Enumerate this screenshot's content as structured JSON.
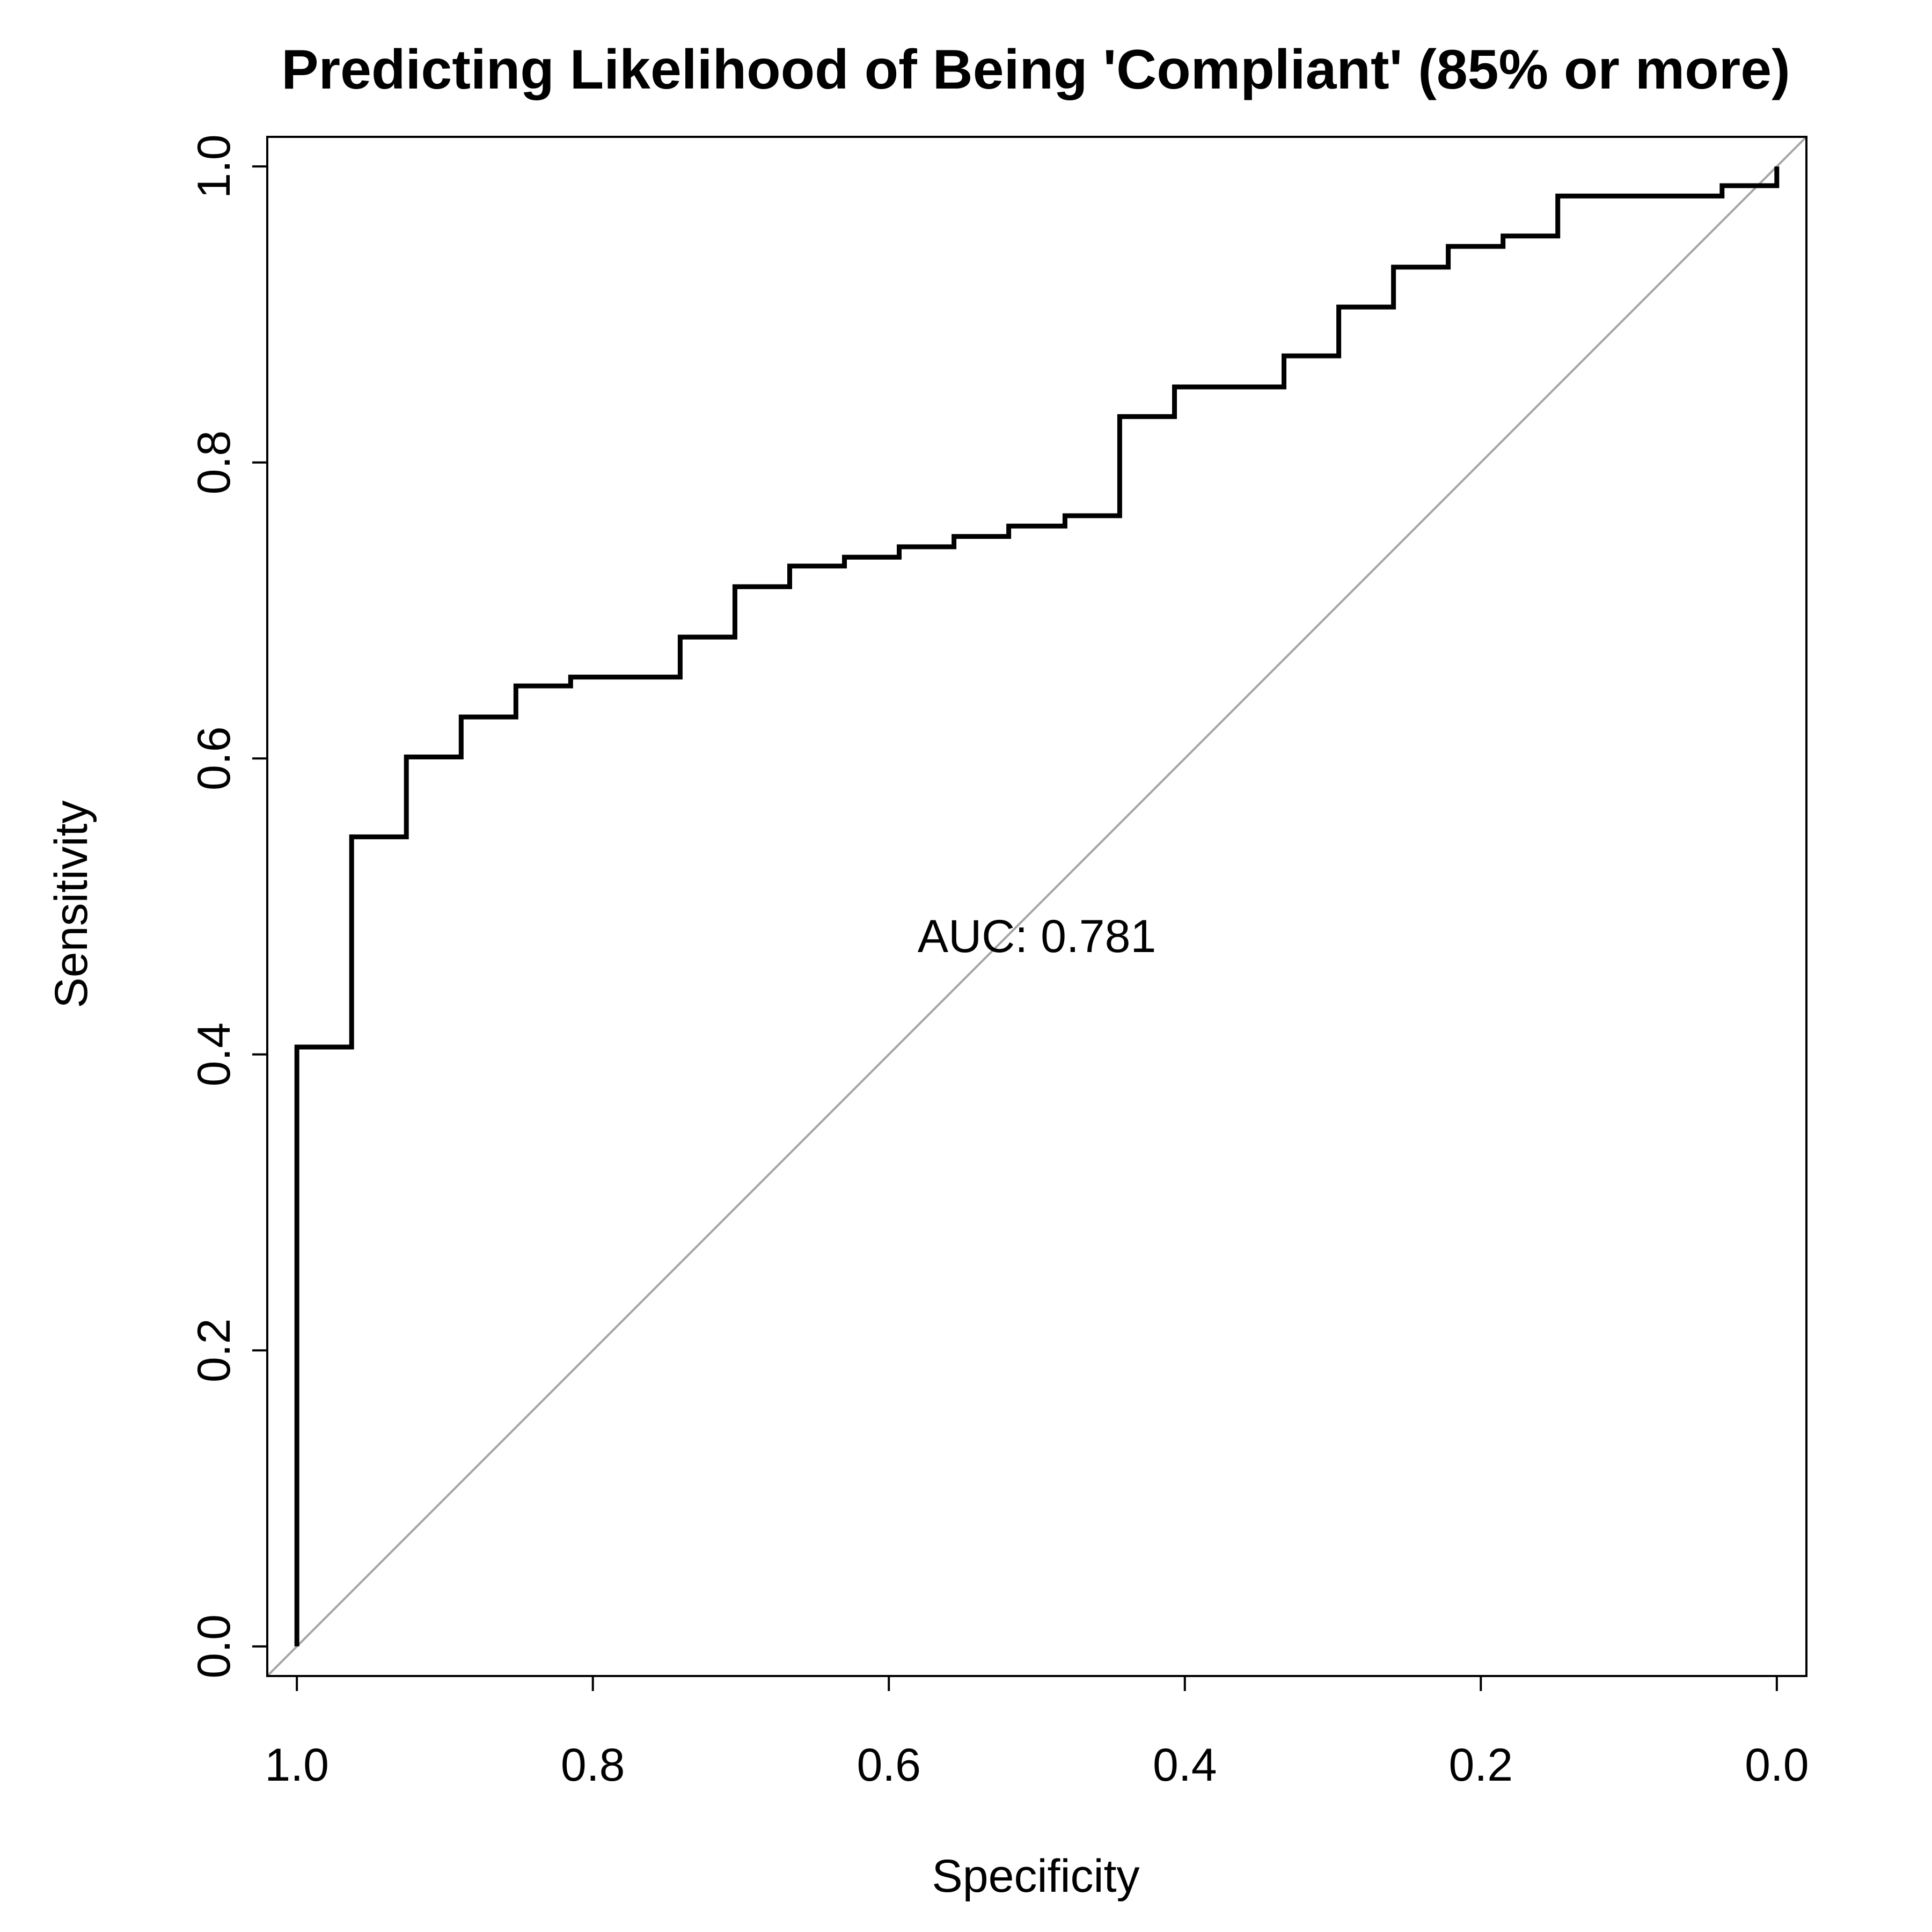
{
  "chart_data": {
    "type": "line",
    "title": "Predicting Likelihood of Being 'Compliant' (85% or more)",
    "xlabel": "Specificity",
    "ylabel": "Sensitivity",
    "xlim": [
      1.02,
      -0.02
    ],
    "ylim": [
      -0.02,
      1.02
    ],
    "x_reversed": true,
    "x_ticks": [
      {
        "value": 1.0,
        "label": "1.0"
      },
      {
        "value": 0.8,
        "label": "0.8"
      },
      {
        "value": 0.6,
        "label": "0.6"
      },
      {
        "value": 0.4,
        "label": "0.4"
      },
      {
        "value": 0.2,
        "label": "0.2"
      },
      {
        "value": 0.0,
        "label": "0.0"
      }
    ],
    "y_ticks": [
      {
        "value": 0.0,
        "label": "0.0"
      },
      {
        "value": 0.2,
        "label": "0.2"
      },
      {
        "value": 0.4,
        "label": "0.4"
      },
      {
        "value": 0.6,
        "label": "0.6"
      },
      {
        "value": 0.8,
        "label": "0.8"
      },
      {
        "value": 1.0,
        "label": "1.0"
      }
    ],
    "grid": false,
    "annotation": {
      "text": "AUC: 0.781",
      "x": 0.5,
      "y": 0.48
    },
    "reference_line": {
      "from": [
        1.0,
        0.0
      ],
      "to": [
        0.0,
        1.0
      ],
      "extends_to_plot_edges": true,
      "color": "#a6a6a6"
    },
    "series": [
      {
        "color": "#000000",
        "points": [
          [
            1.0,
            0.0
          ],
          [
            1.0,
            0.405
          ],
          [
            0.963,
            0.405
          ],
          [
            0.963,
            0.547
          ],
          [
            0.926,
            0.547
          ],
          [
            0.926,
            0.601
          ],
          [
            0.889,
            0.601
          ],
          [
            0.889,
            0.628
          ],
          [
            0.852,
            0.628
          ],
          [
            0.852,
            0.649
          ],
          [
            0.815,
            0.649
          ],
          [
            0.815,
            0.655
          ],
          [
            0.741,
            0.655
          ],
          [
            0.741,
            0.682
          ],
          [
            0.704,
            0.682
          ],
          [
            0.704,
            0.716
          ],
          [
            0.667,
            0.716
          ],
          [
            0.667,
            0.73
          ],
          [
            0.63,
            0.73
          ],
          [
            0.63,
            0.736
          ],
          [
            0.593,
            0.736
          ],
          [
            0.593,
            0.743
          ],
          [
            0.556,
            0.743
          ],
          [
            0.556,
            0.75
          ],
          [
            0.519,
            0.75
          ],
          [
            0.519,
            0.757
          ],
          [
            0.481,
            0.757
          ],
          [
            0.481,
            0.764
          ],
          [
            0.444,
            0.764
          ],
          [
            0.444,
            0.831
          ],
          [
            0.407,
            0.831
          ],
          [
            0.407,
            0.851
          ],
          [
            0.333,
            0.851
          ],
          [
            0.333,
            0.872
          ],
          [
            0.296,
            0.872
          ],
          [
            0.296,
            0.905
          ],
          [
            0.259,
            0.905
          ],
          [
            0.259,
            0.932
          ],
          [
            0.222,
            0.932
          ],
          [
            0.222,
            0.946
          ],
          [
            0.185,
            0.946
          ],
          [
            0.185,
            0.953
          ],
          [
            0.148,
            0.953
          ],
          [
            0.148,
            0.98
          ],
          [
            0.037,
            0.98
          ],
          [
            0.037,
            0.987
          ],
          [
            0.0,
            0.987
          ],
          [
            0.0,
            1.0
          ]
        ]
      }
    ]
  }
}
